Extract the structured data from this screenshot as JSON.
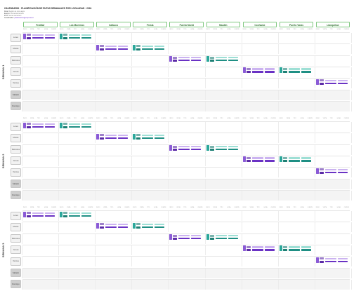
{
  "header": {
    "logo": "",
    "title": "CALENDARIO · PLANIFICACIÓN DE RUTAS SEMANALES POR LOCALIDAD · 2024",
    "meta": [
      {
        "k": "Ruta:",
        "v": "Región de Los Lagos"
      },
      {
        "k": "Equipo:",
        "v": "Comercial terreno"
      },
      {
        "k": "Inicio:",
        "v": "Lunes semana 1"
      },
      {
        "k": "Coordinador:",
        "v": "planificacion@empresa.cl"
      }
    ]
  },
  "locations": [
    "Frutillar",
    "Los Muermos",
    "Calbuco",
    "Fresia",
    "Puerto Montt",
    "Maullín",
    "Cochamó",
    "Puerto Varas",
    "Llanquihue"
  ],
  "days": [
    "Lunes",
    "Martes",
    "Miércoles",
    "Jueves",
    "Viernes",
    "Sábado",
    "Domingo"
  ],
  "colheads": [
    "INICIO",
    "VISITA",
    "TIPO",
    "HORA",
    "CLIENTE"
  ],
  "weeks": [
    {
      "label": "SEMANA 1"
    },
    {
      "label": "SEMANA 2"
    },
    {
      "label": "SEMANA 3"
    }
  ],
  "colors": {
    "purple": "#8a5ad6",
    "teal": "#2aa79a",
    "header_border": "#7ec77e"
  }
}
